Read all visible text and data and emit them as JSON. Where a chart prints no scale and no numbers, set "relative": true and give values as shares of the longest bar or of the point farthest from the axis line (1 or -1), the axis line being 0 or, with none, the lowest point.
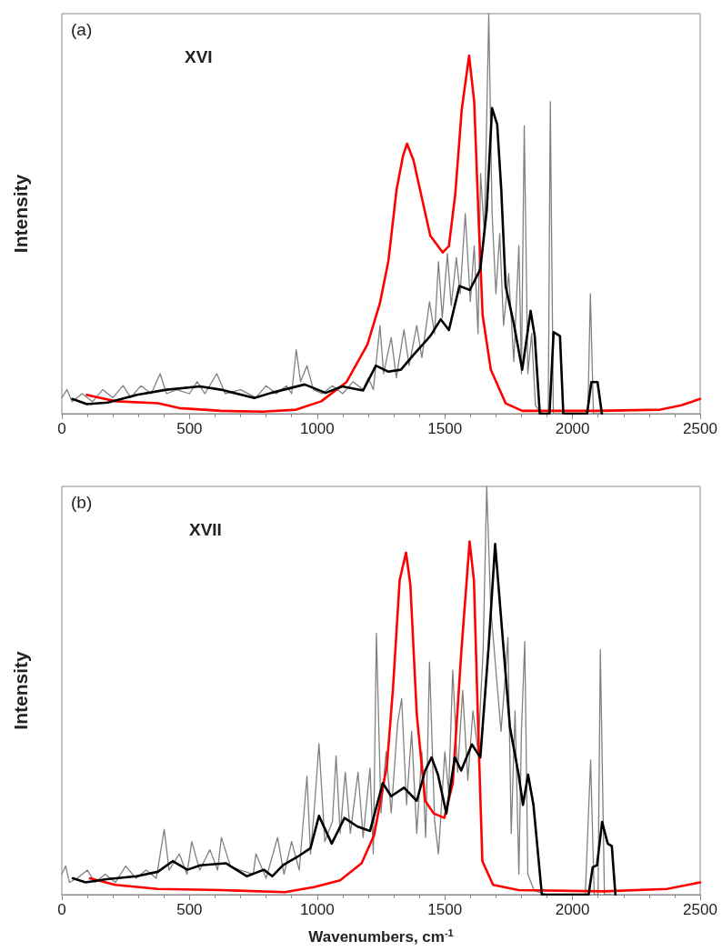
{
  "chart_data": [
    {
      "type": "line",
      "relative": true,
      "ylabel": "Intensity",
      "annotations": [
        "(a)",
        "XVI"
      ],
      "xlim": [
        0,
        2500
      ],
      "xticks": [
        0,
        500,
        1000,
        1500,
        2000,
        2500
      ],
      "series": [
        {
          "color": "#808080",
          "x": [
            0,
            20,
            40,
            80,
            120,
            160,
            200,
            240,
            270,
            310,
            350,
            385,
            410,
            450,
            500,
            530,
            560,
            607,
            640,
            700,
            760,
            800,
            840,
            880,
            900,
            918,
            935,
            960,
            985,
            1020,
            1060,
            1100,
            1140,
            1180,
            1200,
            1220,
            1246,
            1260,
            1290,
            1310,
            1340,
            1360,
            1390,
            1410,
            1440,
            1460,
            1475,
            1490,
            1510,
            1525,
            1545,
            1560,
            1580,
            1600,
            1615,
            1630,
            1640,
            1655,
            1672,
            1685,
            1700,
            1715,
            1730,
            1750,
            1770,
            1790,
            1800,
            1811,
            1825,
            1840,
            1855,
            1880,
            1905,
            1913,
            1925,
            2000,
            2060,
            2070,
            2082,
            2120
          ],
          "values": [
            0.04,
            0.06,
            0.03,
            0.05,
            0.03,
            0.06,
            0.04,
            0.07,
            0.04,
            0.07,
            0.05,
            0.1,
            0.05,
            0.06,
            0.05,
            0.08,
            0.05,
            0.1,
            0.05,
            0.06,
            0.04,
            0.07,
            0.05,
            0.07,
            0.05,
            0.16,
            0.08,
            0.12,
            0.06,
            0.05,
            0.07,
            0.05,
            0.08,
            0.06,
            0.09,
            0.06,
            0.22,
            0.1,
            0.19,
            0.09,
            0.21,
            0.12,
            0.22,
            0.14,
            0.28,
            0.2,
            0.38,
            0.24,
            0.4,
            0.27,
            0.39,
            0.3,
            0.5,
            0.28,
            0.42,
            0.2,
            0.6,
            0.45,
            1,
            0.5,
            0.3,
            0.45,
            0.22,
            0.35,
            0.13,
            0.42,
            0.1,
            0.72,
            0.1,
            0.2,
            0.02,
            0,
            0,
            0.78,
            0,
            0,
            0,
            0.3,
            0,
            0
          ]
        },
        {
          "color": "#ff0000",
          "x": [
            98,
            131,
            213,
            377,
            459,
            623,
            787,
            918,
            1016,
            1115,
            1197,
            1246,
            1279,
            1311,
            1336,
            1352,
            1377,
            1410,
            1443,
            1492,
            1516,
            1541,
            1566,
            1595,
            1615,
            1631,
            1648,
            1680,
            1738,
            1803,
            2098,
            2344,
            2426,
            2500
          ],
          "values": [
            0.047,
            0.042,
            0.031,
            0.026,
            0.014,
            0.007,
            0.005,
            0.01,
            0.031,
            0.079,
            0.173,
            0.277,
            0.382,
            0.56,
            0.644,
            0.675,
            0.634,
            0.539,
            0.445,
            0.403,
            0.419,
            0.55,
            0.759,
            0.895,
            0.78,
            0.508,
            0.246,
            0.11,
            0.026,
            0.007,
            0.007,
            0.01,
            0.021,
            0.037
          ]
        },
        {
          "color": "#000000",
          "x": [
            41,
            98,
            180,
            295,
            410,
            541,
            623,
            754,
            820,
            951,
            1033,
            1098,
            1180,
            1230,
            1279,
            1328,
            1377,
            1443,
            1484,
            1516,
            1557,
            1598,
            1639,
            1664,
            1685,
            1705,
            1721,
            1738,
            1770,
            1803,
            1836,
            1852,
            1872,
            1910,
            1926,
            1951,
            1964,
            2057,
            2074,
            2098,
            2115
          ],
          "values": [
            0.037,
            0.024,
            0.028,
            0.047,
            0.06,
            0.068,
            0.06,
            0.039,
            0.052,
            0.073,
            0.052,
            0.068,
            0.058,
            0.12,
            0.105,
            0.11,
            0.147,
            0.194,
            0.236,
            0.209,
            0.319,
            0.309,
            0.361,
            0.508,
            0.764,
            0.723,
            0.56,
            0.319,
            0.225,
            0.11,
            0.257,
            0.194,
            0,
            0,
            0.204,
            0.194,
            0,
            0,
            0.079,
            0.079,
            0
          ]
        }
      ]
    },
    {
      "type": "line",
      "relative": true,
      "ylabel": "Intensity",
      "xlabel": "Wavenumbers, cm$^{-1}$",
      "annotations": [
        "(b)",
        "XVII"
      ],
      "xlim": [
        0,
        2500
      ],
      "xticks": [
        0,
        500,
        1000,
        1500,
        2000,
        2500
      ],
      "series": [
        {
          "color": "#808080",
          "x": [
            0,
            15,
            30,
            60,
            100,
            130,
            170,
            210,
            250,
            290,
            330,
            370,
            401,
            420,
            460,
            490,
            509,
            540,
            580,
            610,
            625,
            660,
            700,
            750,
            760,
            800,
            845,
            870,
            900,
            930,
            960,
            974,
            990,
            1007,
            1030,
            1060,
            1074,
            1090,
            1110,
            1130,
            1160,
            1180,
            1207,
            1220,
            1232,
            1250,
            1270,
            1290,
            1315,
            1331,
            1350,
            1370,
            1390,
            1410,
            1425,
            1440,
            1460,
            1475,
            1500,
            1515,
            1531,
            1550,
            1570,
            1590,
            1610,
            1630,
            1650,
            1664,
            1680,
            1700,
            1720,
            1735,
            1747,
            1760,
            1775,
            1790,
            1800,
            1813,
            1825,
            1850,
            1900,
            2050,
            2071,
            2085,
            2100,
            2109,
            2125,
            2150
          ],
          "values": [
            0.05,
            0.07,
            0.03,
            0.04,
            0.06,
            0.03,
            0.05,
            0.03,
            0.07,
            0.04,
            0.06,
            0.04,
            0.16,
            0.06,
            0.1,
            0.05,
            0.13,
            0.06,
            0.11,
            0.06,
            0.14,
            0.07,
            0.06,
            0.05,
            0.1,
            0.04,
            0.14,
            0.05,
            0.13,
            0.06,
            0.29,
            0.1,
            0.22,
            0.37,
            0.13,
            0.18,
            0.34,
            0.15,
            0.3,
            0.15,
            0.3,
            0.14,
            0.31,
            0.1,
            0.64,
            0.2,
            0.35,
            0.2,
            0.42,
            0.48,
            0.22,
            0.4,
            0.15,
            0.35,
            0.14,
            0.57,
            0.18,
            0.1,
            0.35,
            0.25,
            0.55,
            0.3,
            0.5,
            0.28,
            0.45,
            0.35,
            0.6,
            1,
            0.7,
            0.55,
            0.4,
            0.52,
            0.63,
            0.15,
            0.45,
            0.05,
            0.4,
            0.62,
            0.05,
            0.01,
            0,
            0,
            0.33,
            0,
            0,
            0.6,
            0,
            0
          ]
        },
        {
          "color": "#ff0000",
          "x": [
            110,
            209,
            376,
            625,
            874,
            991,
            1090,
            1174,
            1223,
            1273,
            1297,
            1323,
            1348,
            1365,
            1390,
            1423,
            1456,
            1498,
            1531,
            1564,
            1597,
            1614,
            1631,
            1647,
            1689,
            1789,
            2121,
            2370,
            2500
          ],
          "values": [
            0.04,
            0.024,
            0.014,
            0.011,
            0.006,
            0.019,
            0.035,
            0.077,
            0.146,
            0.315,
            0.505,
            0.77,
            0.838,
            0.759,
            0.442,
            0.23,
            0.199,
            0.188,
            0.273,
            0.59,
            0.865,
            0.77,
            0.4,
            0.082,
            0.024,
            0.011,
            0.008,
            0.014,
            0.03
          ]
        },
        {
          "color": "#000000",
          "x": [
            43,
            93,
            176,
            293,
            376,
            434,
            492,
            542,
            642,
            725,
            791,
            824,
            866,
            924,
            974,
            1007,
            1057,
            1107,
            1157,
            1207,
            1257,
            1290,
            1340,
            1390,
            1423,
            1448,
            1473,
            1506,
            1539,
            1564,
            1606,
            1639,
            1672,
            1697,
            1722,
            1755,
            1789,
            1806,
            1826,
            1847,
            1880,
            2063,
            2079,
            2096,
            2116,
            2138,
            2154,
            2168
          ],
          "values": [
            0.04,
            0.03,
            0.038,
            0.045,
            0.056,
            0.082,
            0.061,
            0.072,
            0.077,
            0.045,
            0.061,
            0.045,
            0.072,
            0.093,
            0.114,
            0.193,
            0.125,
            0.188,
            0.167,
            0.156,
            0.273,
            0.241,
            0.262,
            0.23,
            0.304,
            0.336,
            0.294,
            0.199,
            0.336,
            0.304,
            0.368,
            0.336,
            0.611,
            0.859,
            0.664,
            0.41,
            0.294,
            0.22,
            0.294,
            0.22,
            0,
            0,
            0.067,
            0.072,
            0.178,
            0.125,
            0.119,
            0
          ]
        }
      ]
    }
  ]
}
